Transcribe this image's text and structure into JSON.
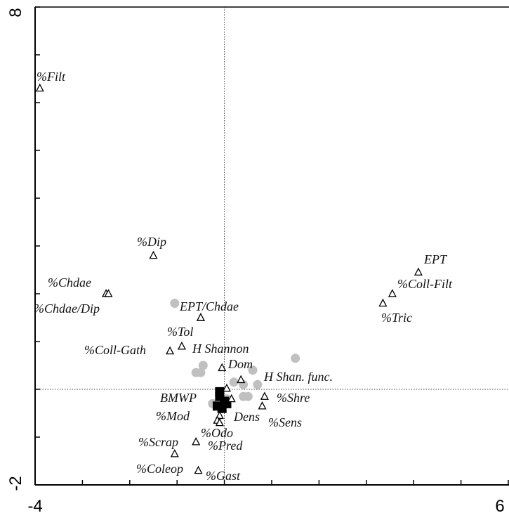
{
  "chart_data": {
    "type": "scatter",
    "title": "",
    "xlabel": "",
    "ylabel": "",
    "xlim": [
      -4,
      6
    ],
    "ylim": [
      -2,
      8
    ],
    "x_ticks": [
      -4,
      -3,
      -2,
      -1,
      0,
      1,
      2,
      3,
      4,
      5,
      6
    ],
    "x_tick_labels": [
      "-4",
      "",
      "",
      "",
      "",
      "",
      "",
      "",
      "",
      "",
      "6"
    ],
    "y_ticks": [
      -2,
      -1,
      0,
      1,
      2,
      3,
      4,
      5,
      6,
      7,
      8
    ],
    "y_tick_labels": [
      "-2",
      "",
      "",
      "",
      "",
      "",
      "",
      "",
      "",
      "",
      "8"
    ],
    "reference_lines": {
      "x": 0,
      "y": 0
    },
    "grid": false,
    "series": [
      {
        "marker": "open-triangle",
        "color": "#000000",
        "points": [
          {
            "label": "%Filt",
            "x": -3.9,
            "y": 6.3
          },
          {
            "label": "%Dip",
            "x": -1.5,
            "y": 2.8
          },
          {
            "label": "%Chdae",
            "x": -2.5,
            "y": 2.0
          },
          {
            "label": "%Chdae/Dip",
            "x": -2.45,
            "y": 2.0
          },
          {
            "label": "EPT/Chdae",
            "x": -0.5,
            "y": 1.5
          },
          {
            "label": "%Tol",
            "x": -0.5,
            "y": 1.5
          },
          {
            "label": "%Coll-Gath",
            "x": -1.15,
            "y": 0.8
          },
          {
            "label": "H Shannon",
            "x": -0.9,
            "y": 0.9
          },
          {
            "label": "Dom",
            "x": -0.05,
            "y": 0.45
          },
          {
            "label": "H Shan. func.",
            "x": 0.35,
            "y": 0.2
          },
          {
            "label": "EPT",
            "x": 4.1,
            "y": 2.45
          },
          {
            "label": "%Coll-Filt",
            "x": 3.55,
            "y": 2.0
          },
          {
            "label": "%Tric",
            "x": 3.35,
            "y": 1.8
          },
          {
            "label": "BMWP",
            "x": 0.05,
            "y": 0.02
          },
          {
            "label": "%Shre",
            "x": 0.85,
            "y": -0.15
          },
          {
            "label": "%Sens",
            "x": 0.8,
            "y": -0.35
          },
          {
            "label": "Dens",
            "x": 0.15,
            "y": -0.2
          },
          {
            "label": "%Mod",
            "x": -0.1,
            "y": -0.55
          },
          {
            "label": "%Odo",
            "x": -0.15,
            "y": -0.65
          },
          {
            "label": "%Pred",
            "x": -0.1,
            "y": -0.7
          },
          {
            "label": "%Scrap",
            "x": -0.6,
            "y": -1.1
          },
          {
            "label": "%Coleop",
            "x": -1.05,
            "y": -1.35
          },
          {
            "label": "%Gast",
            "x": -0.55,
            "y": -1.7
          }
        ]
      },
      {
        "marker": "filled-circle",
        "color": "#c0c0c0",
        "points": [
          {
            "x": -1.05,
            "y": 1.8
          },
          {
            "x": -0.5,
            "y": 0.35
          },
          {
            "x": -0.6,
            "y": 0.35
          },
          {
            "x": -0.45,
            "y": 0.5
          },
          {
            "x": 0.2,
            "y": 0.15
          },
          {
            "x": 0.4,
            "y": 0.1
          },
          {
            "x": 0.6,
            "y": 0.4
          },
          {
            "x": 0.7,
            "y": 0.1
          },
          {
            "x": 1.5,
            "y": 0.65
          },
          {
            "x": 0.5,
            "y": -0.15
          },
          {
            "x": 0.4,
            "y": -0.15
          },
          {
            "x": -0.25,
            "y": -0.3
          },
          {
            "x": -0.1,
            "y": -0.1
          },
          {
            "x": 0.05,
            "y": -0.2
          }
        ]
      },
      {
        "marker": "filled-square",
        "color": "#000000",
        "points": [
          {
            "x": -0.1,
            "y": -0.15
          },
          {
            "x": 0.0,
            "y": -0.25
          },
          {
            "x": -0.15,
            "y": -0.35
          },
          {
            "x": -0.05,
            "y": -0.4
          },
          {
            "x": 0.05,
            "y": -0.3
          },
          {
            "x": -0.1,
            "y": -0.05
          }
        ]
      }
    ]
  }
}
